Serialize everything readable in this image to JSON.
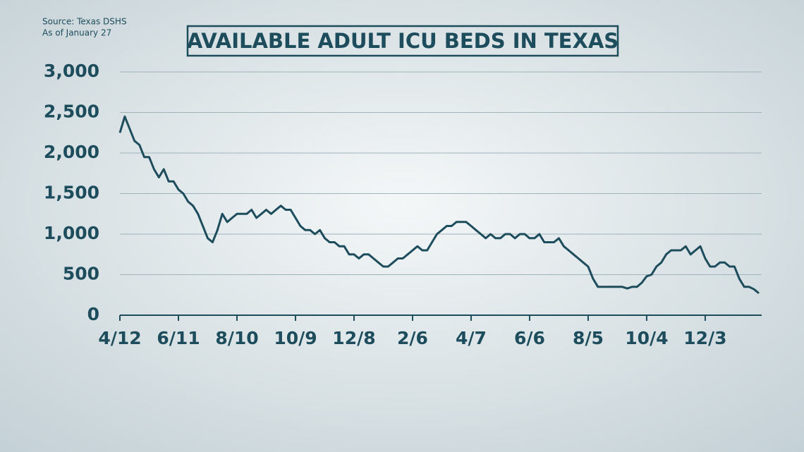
{
  "chart_data": {
    "type": "line",
    "title": "AVAILABLE ADULT ICU BEDS IN TEXAS",
    "source": "Source: Texas DSHS",
    "note": "As of January 27",
    "categories": [
      "4/12",
      null,
      null,
      null,
      null,
      null,
      null,
      null,
      null,
      null,
      null,
      null,
      "6/11",
      null,
      null,
      null,
      null,
      null,
      null,
      null,
      null,
      null,
      null,
      null,
      "8/10",
      null,
      null,
      null,
      null,
      null,
      null,
      null,
      null,
      null,
      null,
      null,
      "10/9",
      null,
      null,
      null,
      null,
      null,
      null,
      null,
      null,
      null,
      null,
      null,
      "12/8",
      null,
      null,
      null,
      null,
      null,
      null,
      null,
      null,
      null,
      null,
      null,
      "2/6",
      null,
      null,
      null,
      null,
      null,
      null,
      null,
      null,
      null,
      null,
      null,
      "4/7",
      null,
      null,
      null,
      null,
      null,
      null,
      null,
      null,
      null,
      null,
      null,
      "6/6",
      null,
      null,
      null,
      null,
      null,
      null,
      null,
      null,
      null,
      null,
      null,
      "8/5",
      null,
      null,
      null,
      null,
      null,
      null,
      null,
      null,
      null,
      null,
      null,
      "10/4",
      null,
      null,
      null,
      null,
      null,
      null,
      null,
      null,
      null,
      null,
      null,
      "12/3",
      null,
      null,
      null,
      null,
      null,
      null,
      null,
      null,
      null,
      null,
      null
    ],
    "values": [
      2250,
      2450,
      2300,
      2150,
      2100,
      1950,
      1950,
      1800,
      1700,
      1800,
      1650,
      1650,
      1550,
      1500,
      1400,
      1350,
      1250,
      1100,
      950,
      900,
      1050,
      1250,
      1150,
      1200,
      1250,
      1250,
      1250,
      1300,
      1200,
      1250,
      1300,
      1250,
      1300,
      1350,
      1300,
      1300,
      1200,
      1100,
      1050,
      1050,
      1000,
      1050,
      950,
      900,
      900,
      850,
      850,
      750,
      750,
      700,
      750,
      750,
      700,
      650,
      600,
      600,
      650,
      700,
      700,
      750,
      800,
      850,
      800,
      800,
      900,
      1000,
      1050,
      1100,
      1100,
      1150,
      1150,
      1150,
      1100,
      1050,
      1000,
      950,
      1000,
      950,
      950,
      1000,
      1000,
      950,
      1000,
      1000,
      950,
      950,
      1000,
      900,
      900,
      900,
      950,
      850,
      800,
      750,
      700,
      650,
      600,
      450,
      350,
      350,
      350,
      350,
      350,
      350,
      330,
      350,
      350,
      400,
      480,
      500,
      600,
      650,
      750,
      800,
      800,
      800,
      850,
      750,
      800,
      850,
      700,
      600,
      600,
      650,
      650,
      600,
      600,
      450,
      350,
      350,
      320,
      270
    ],
    "color": "#1d4d5c",
    "ylim": [
      0,
      3000
    ],
    "yticks": [
      0,
      500,
      {
        "value": 1000,
        "label": "1,000"
      },
      {
        "value": 1500,
        "label": "1,500"
      },
      {
        "value": 2000,
        "label": "2,000"
      },
      {
        "value": 2500,
        "label": "2,500"
      },
      {
        "value": 3000,
        "label": "3,000"
      }
    ],
    "grid": true
  }
}
